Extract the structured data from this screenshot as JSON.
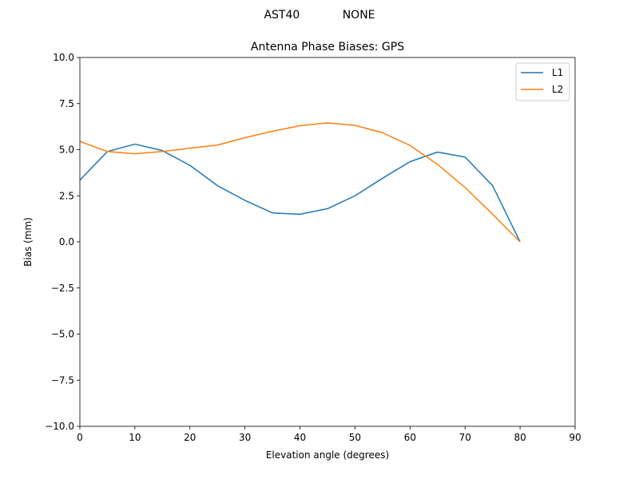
{
  "chart_data": {
    "type": "line",
    "suptitle": "AST40            NONE",
    "title": "Antenna Phase Biases: GPS",
    "xlabel": "Elevation angle (degrees)",
    "ylabel": "Bias (mm)",
    "xlim": [
      0,
      90
    ],
    "ylim": [
      -10,
      10
    ],
    "xticks": [
      0,
      10,
      20,
      30,
      40,
      50,
      60,
      70,
      80,
      90
    ],
    "yticks": [
      -10.0,
      -7.5,
      -5.0,
      -2.5,
      0.0,
      2.5,
      5.0,
      7.5,
      10.0
    ],
    "xtick_labels": [
      "0",
      "10",
      "20",
      "30",
      "40",
      "50",
      "60",
      "70",
      "80",
      "90"
    ],
    "ytick_labels": [
      "−10.0",
      "−7.5",
      "−5.0",
      "−2.5",
      "0.0",
      "2.5",
      "5.0",
      "7.5",
      "10.0"
    ],
    "grid": false,
    "legend_position": "top-right",
    "x": [
      0,
      5,
      10,
      15,
      20,
      25,
      30,
      35,
      40,
      45,
      50,
      55,
      60,
      65,
      70,
      75,
      80
    ],
    "series": [
      {
        "name": "L1",
        "color": "#1f77b4",
        "values": [
          3.35,
          4.9,
          5.3,
          4.95,
          4.15,
          3.05,
          2.25,
          1.57,
          1.5,
          1.8,
          2.5,
          3.45,
          4.35,
          4.87,
          4.6,
          3.05,
          0.0
        ]
      },
      {
        "name": "L2",
        "color": "#ff7f0e",
        "values": [
          5.45,
          4.9,
          4.78,
          4.9,
          5.08,
          5.25,
          5.65,
          6.0,
          6.3,
          6.45,
          6.32,
          5.92,
          5.23,
          4.2,
          2.95,
          1.5,
          0.0
        ]
      }
    ]
  }
}
